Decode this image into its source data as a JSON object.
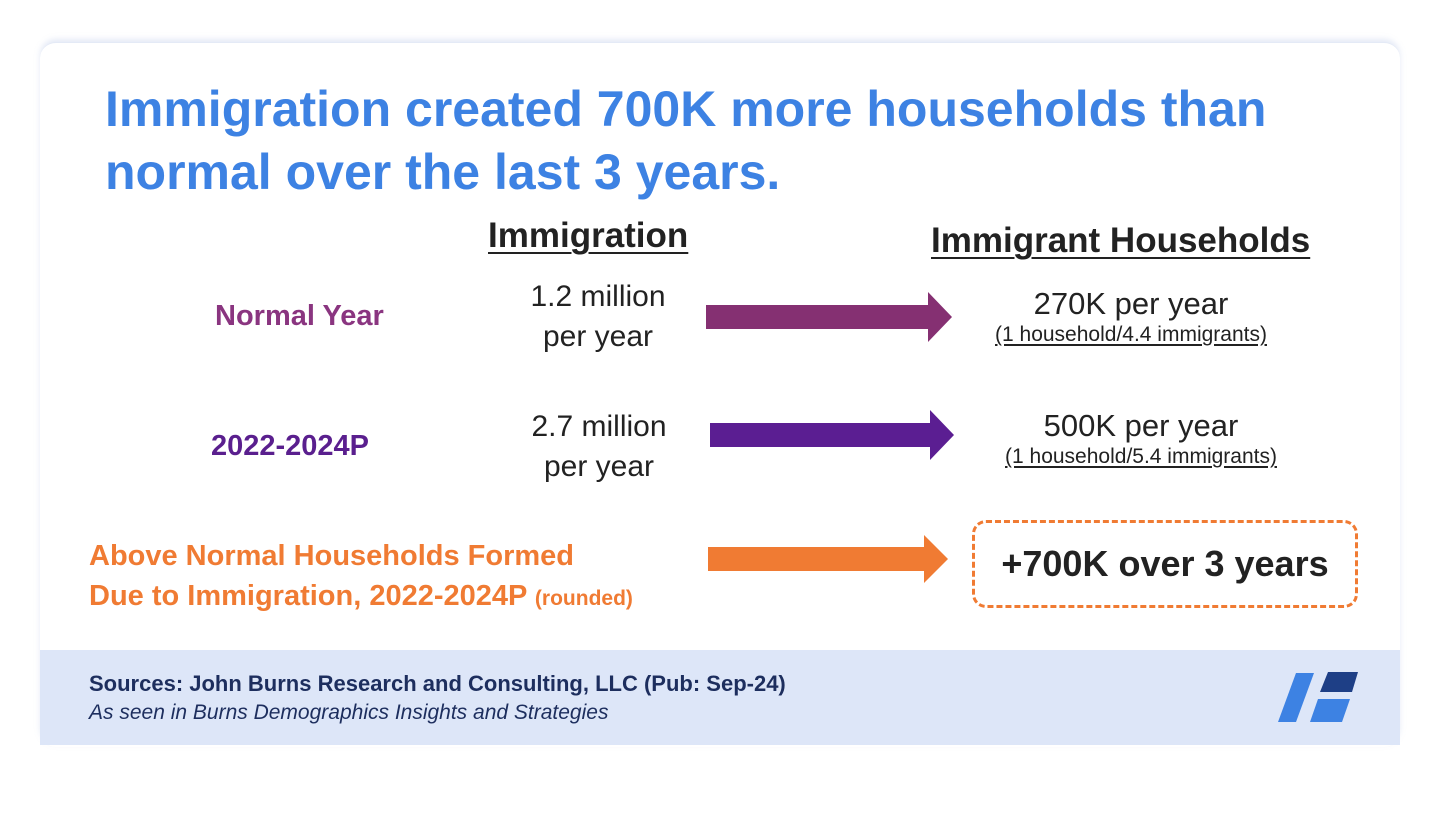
{
  "title": "Immigration created 700K more households than normal over the last 3 years.",
  "columns": {
    "immigration": "Immigration",
    "households": "Immigrant Households"
  },
  "rows": [
    {
      "label": "Normal Year",
      "label_color": "#8a3580",
      "immigration_line1": "1.2 million",
      "immigration_line2": "per year",
      "households_main": "270K per year",
      "households_ratio": "(1 household/4.4 immigrants)",
      "arrow_color": "#853072"
    },
    {
      "label": "2022-2024P",
      "label_color": "#5a1f8e",
      "immigration_line1": "2.7 million",
      "immigration_line2": "per year",
      "households_main": "500K per year",
      "households_ratio": "(1 household/5.4 immigrants)",
      "arrow_color": "#5b1e92"
    }
  ],
  "above_normal": {
    "line1": "Above Normal Households Formed",
    "line2": "Due to Immigration, 2022-2024P",
    "note": "(rounded)",
    "color": "#f07b33",
    "result": "+700K over 3 years"
  },
  "footer": {
    "sources": "Sources: John Burns Research and Consulting, LLC (Pub: Sep-24)",
    "seen_in": "As seen in Burns Demographics Insights and Strategies",
    "logo_icon": "burns-logo-icon"
  },
  "colors": {
    "title": "#3d82e3",
    "footer_bg": "#dde6f8",
    "logo_dark": "#1e3f86",
    "logo_light": "#3d82e3"
  }
}
